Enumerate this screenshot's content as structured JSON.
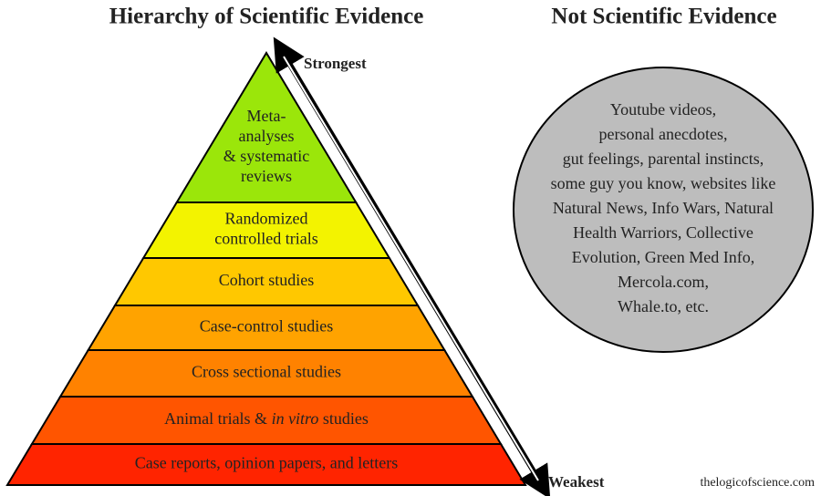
{
  "left_title": "Hierarchy of Scientific Evidence",
  "right_title": "Not Scientific Evidence",
  "arrow": {
    "top_label": "Strongest",
    "bottom_label": "Weakest"
  },
  "pyramid": {
    "levels": [
      {
        "lines": [
          "Meta-",
          "analyses",
          "& systematic",
          "reviews"
        ]
      },
      {
        "lines": [
          "Randomized",
          "controlled trials"
        ]
      },
      {
        "lines": [
          "Cohort studies"
        ]
      },
      {
        "lines": [
          "Case-control studies"
        ]
      },
      {
        "lines": [
          "Cross sectional studies"
        ]
      },
      {
        "parts": [
          "Animal trials & ",
          "in vitro",
          " studies"
        ]
      },
      {
        "lines": [
          "Case reports, opinion papers, and letters"
        ]
      }
    ]
  },
  "circle": {
    "lines": [
      "Youtube videos,",
      "personal anecdotes,",
      "gut feelings, parental instincts,",
      "some guy you know, websites like",
      "Natural News, Info Wars, Natural",
      "Health Warriors, Collective",
      "Evolution, Green Med Info,",
      "Mercola.com,",
      "Whale.to, etc."
    ]
  },
  "footer": "thelogicofscience.com"
}
